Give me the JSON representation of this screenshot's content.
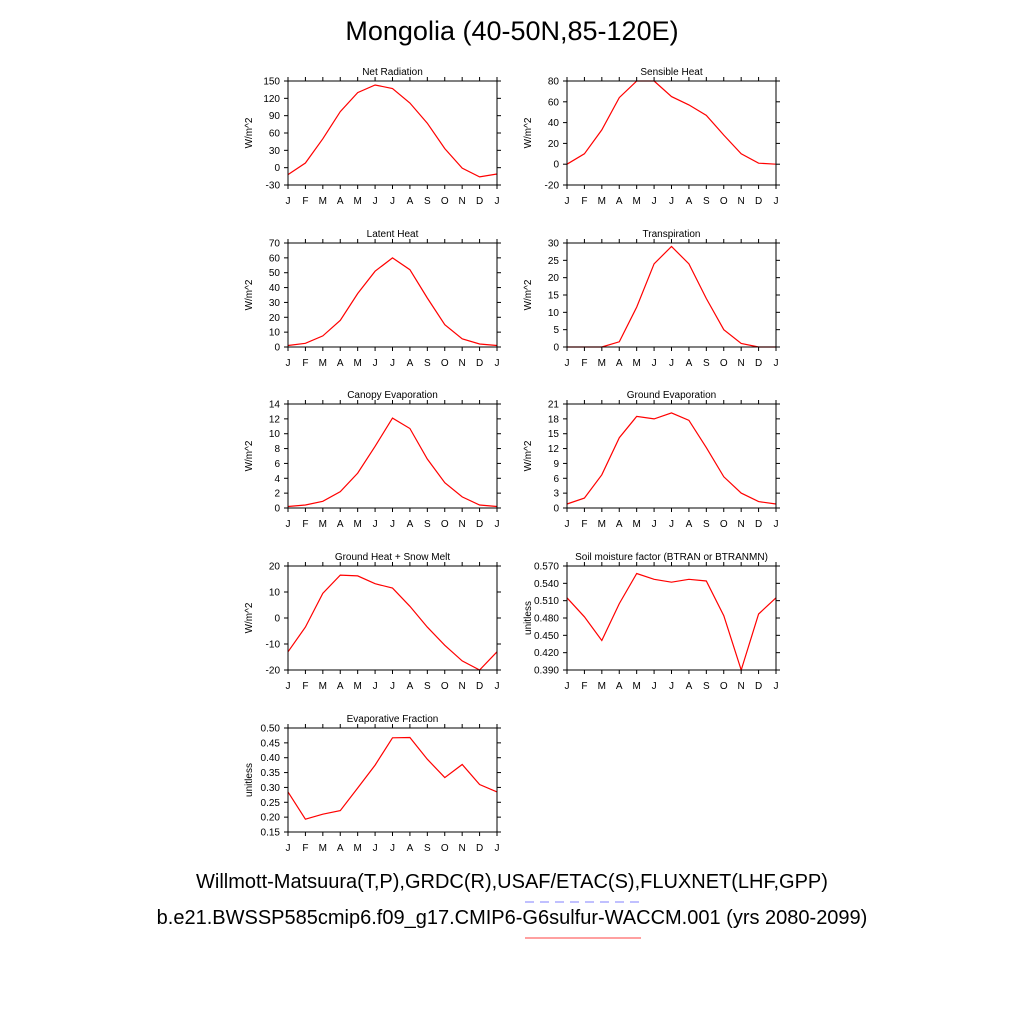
{
  "main_title": "Mongolia (40-50N,85-120E)",
  "footer": {
    "line1": "Willmott-Matsuura(T,P),GRDC(R),USAF/ETAC(S),FLUXNET(LHF,GPP)",
    "line2": "b.e21.BWSSP585cmip6.f09_g17.CMIP6-G6sulfur-WACCM.001 (yrs 2080-2099)",
    "line1_underline_color": "#8080ff",
    "line2_underline_color": "#ff8080"
  },
  "line_color": "#ff0000",
  "chart_data": [
    {
      "type": "line",
      "title": "Net Radiation",
      "ylabel": "W/m^2",
      "x": [
        "J",
        "F",
        "M",
        "A",
        "M",
        "J",
        "J",
        "A",
        "S",
        "O",
        "N",
        "D",
        "J"
      ],
      "ylim": [
        -30,
        150
      ],
      "yticks": [
        "-30",
        "0",
        "30",
        "60",
        "90",
        "120",
        "150"
      ],
      "series": [
        {
          "values": [
            -12,
            8,
            50,
            97,
            130,
            143,
            137,
            112,
            77,
            33,
            -1,
            -16,
            -11
          ]
        }
      ]
    },
    {
      "type": "line",
      "title": "Sensible Heat",
      "ylabel": "W/m^2",
      "x": [
        "J",
        "F",
        "M",
        "A",
        "M",
        "J",
        "J",
        "A",
        "S",
        "O",
        "N",
        "D",
        "J"
      ],
      "ylim": [
        -20,
        80
      ],
      "yticks": [
        "-20",
        "0",
        "20",
        "40",
        "60",
        "80"
      ],
      "series": [
        {
          "values": [
            0,
            10,
            33,
            64,
            80,
            80,
            65,
            57,
            47,
            28,
            10,
            1,
            0
          ]
        }
      ]
    },
    {
      "type": "line",
      "title": "Latent Heat",
      "ylabel": "W/m^2",
      "x": [
        "J",
        "F",
        "M",
        "A",
        "M",
        "J",
        "J",
        "A",
        "S",
        "O",
        "N",
        "D",
        "J"
      ],
      "ylim": [
        0,
        70
      ],
      "yticks": [
        "0",
        "10",
        "20",
        "30",
        "40",
        "50",
        "60",
        "70"
      ],
      "series": [
        {
          "values": [
            1,
            2.5,
            7.5,
            18,
            36,
            51,
            60,
            52,
            33,
            15,
            5.5,
            2,
            1
          ]
        }
      ]
    },
    {
      "type": "line",
      "title": "Transpiration",
      "ylabel": "W/m^2",
      "x": [
        "J",
        "F",
        "M",
        "A",
        "M",
        "J",
        "J",
        "A",
        "S",
        "O",
        "N",
        "D",
        "J"
      ],
      "ylim": [
        0,
        30
      ],
      "yticks": [
        "0",
        "5",
        "10",
        "15",
        "20",
        "25",
        "30"
      ],
      "series": [
        {
          "values": [
            0,
            0,
            0,
            1.5,
            11.5,
            24,
            29,
            24,
            14,
            5,
            1,
            0,
            0
          ]
        }
      ]
    },
    {
      "type": "line",
      "title": "Canopy Evaporation",
      "ylabel": "W/m^2",
      "x": [
        "J",
        "F",
        "M",
        "A",
        "M",
        "J",
        "J",
        "A",
        "S",
        "O",
        "N",
        "D",
        "J"
      ],
      "ylim": [
        0,
        14
      ],
      "yticks": [
        "0",
        "2",
        "4",
        "6",
        "8",
        "10",
        "12",
        "14"
      ],
      "series": [
        {
          "values": [
            0.2,
            0.4,
            0.9,
            2.2,
            4.7,
            8.3,
            12.1,
            10.7,
            6.6,
            3.4,
            1.5,
            0.4,
            0.2
          ]
        }
      ]
    },
    {
      "type": "line",
      "title": "Ground Evaporation",
      "ylabel": "W/m^2",
      "x": [
        "J",
        "F",
        "M",
        "A",
        "M",
        "J",
        "J",
        "A",
        "S",
        "O",
        "N",
        "D",
        "J"
      ],
      "ylim": [
        0,
        21
      ],
      "yticks": [
        "0",
        "3",
        "6",
        "9",
        "12",
        "15",
        "18",
        "21"
      ],
      "series": [
        {
          "values": [
            0.8,
            2,
            6.7,
            14.2,
            18.5,
            18,
            19.2,
            17.7,
            12.2,
            6.3,
            3,
            1.3,
            0.8
          ]
        }
      ]
    },
    {
      "type": "line",
      "title": "Ground Heat + Snow Melt",
      "ylabel": "W/m^2",
      "x": [
        "J",
        "F",
        "M",
        "A",
        "M",
        "J",
        "J",
        "A",
        "S",
        "O",
        "N",
        "D",
        "J"
      ],
      "ylim": [
        -20,
        20
      ],
      "yticks": [
        "-20",
        "-10",
        "0",
        "10",
        "20"
      ],
      "series": [
        {
          "values": [
            -13,
            -3.5,
            9.5,
            16.5,
            16.2,
            13.2,
            11.5,
            4.5,
            -3.5,
            -10.5,
            -16.5,
            -20,
            -13
          ]
        }
      ]
    },
    {
      "type": "line",
      "title": "Soil moisture factor (BTRAN or BTRANMN)",
      "ylabel": "unitless",
      "x": [
        "J",
        "F",
        "M",
        "A",
        "M",
        "J",
        "J",
        "A",
        "S",
        "O",
        "N",
        "D",
        "J"
      ],
      "ylim": [
        0.39,
        0.57
      ],
      "yticks": [
        "0.390",
        "0.420",
        "0.450",
        "0.480",
        "0.510",
        "0.540",
        "0.570"
      ],
      "series": [
        {
          "values": [
            0.515,
            0.482,
            0.441,
            0.505,
            0.557,
            0.547,
            0.542,
            0.547,
            0.544,
            0.484,
            0.39,
            0.487,
            0.515
          ]
        }
      ]
    },
    {
      "type": "line",
      "title": "Evaporative Fraction",
      "ylabel": "unitless",
      "x": [
        "J",
        "F",
        "M",
        "A",
        "M",
        "J",
        "J",
        "A",
        "S",
        "O",
        "N",
        "D",
        "J"
      ],
      "ylim": [
        0.15,
        0.5
      ],
      "yticks": [
        "0.15",
        "0.20",
        "0.25",
        "0.30",
        "0.35",
        "0.40",
        "0.45",
        "0.50"
      ],
      "series": [
        {
          "values": [
            0.285,
            0.193,
            0.21,
            0.222,
            0.298,
            0.375,
            0.467,
            0.468,
            0.395,
            0.333,
            0.377,
            0.31,
            0.285
          ]
        }
      ]
    }
  ]
}
